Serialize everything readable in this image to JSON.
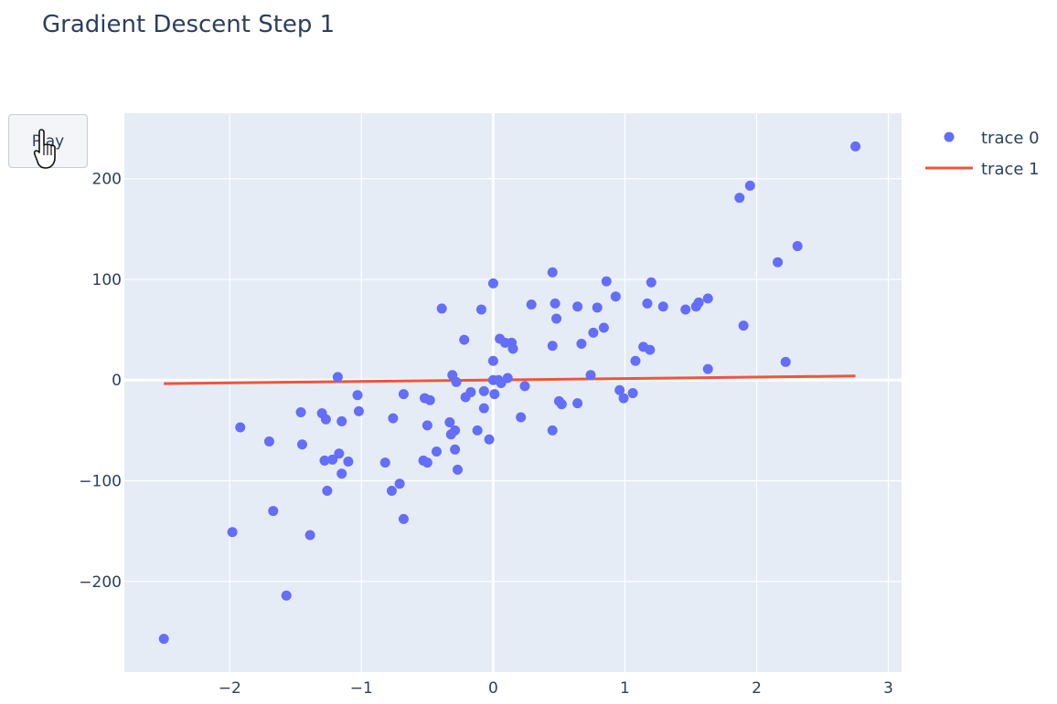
{
  "controls": {
    "play_label": "Play",
    "cursor_icon": "hand-pointer-icon"
  },
  "colors": {
    "plot_bg": "#e5ecf6",
    "grid": "#ffffff",
    "marker": "#636efa",
    "line": "#ef553b",
    "text": "#2a3f5f"
  },
  "chart_data": {
    "type": "scatter",
    "title": "Gradient Descent Step 1",
    "xlabel": "",
    "ylabel": "",
    "xlim": [
      -2.8,
      3.1
    ],
    "ylim": [
      -290,
      265
    ],
    "x_ticks": [
      -2,
      -1,
      0,
      1,
      2,
      3
    ],
    "x_tick_labels": [
      "−2",
      "−1",
      "0",
      "1",
      "2",
      "3"
    ],
    "y_ticks": [
      -200,
      -100,
      0,
      100,
      200
    ],
    "y_tick_labels": [
      "−200",
      "−100",
      "0",
      "100",
      "200"
    ],
    "grid": true,
    "legend_position": "top-right",
    "series": [
      {
        "name": "trace 0",
        "mode": "markers",
        "points": [
          [
            2.75,
            232
          ],
          [
            1.95,
            193
          ],
          [
            1.87,
            181
          ],
          [
            2.31,
            133
          ],
          [
            2.16,
            117
          ],
          [
            0.45,
            107
          ],
          [
            0.86,
            98
          ],
          [
            1.2,
            97
          ],
          [
            0.0,
            96
          ],
          [
            0.93,
            83
          ],
          [
            1.63,
            81
          ],
          [
            1.56,
            77
          ],
          [
            0.47,
            76
          ],
          [
            1.17,
            76
          ],
          [
            0.29,
            75
          ],
          [
            1.54,
            73
          ],
          [
            1.29,
            73
          ],
          [
            0.64,
            73
          ],
          [
            0.79,
            72
          ],
          [
            1.46,
            70
          ],
          [
            -0.39,
            71
          ],
          [
            -0.09,
            70
          ],
          [
            0.48,
            61
          ],
          [
            1.9,
            54
          ],
          [
            0.84,
            52
          ],
          [
            0.76,
            47
          ],
          [
            0.05,
            41
          ],
          [
            -0.22,
            40
          ],
          [
            0.09,
            37
          ],
          [
            0.14,
            37
          ],
          [
            0.67,
            36
          ],
          [
            0.45,
            34
          ],
          [
            1.14,
            33
          ],
          [
            0.15,
            31
          ],
          [
            1.19,
            30
          ],
          [
            1.08,
            19
          ],
          [
            0.0,
            19
          ],
          [
            2.22,
            18
          ],
          [
            1.63,
            11
          ],
          [
            -0.31,
            5
          ],
          [
            0.74,
            5
          ],
          [
            -1.18,
            3
          ],
          [
            0.11,
            2
          ],
          [
            0.0,
            0
          ],
          [
            0.04,
            0
          ],
          [
            -0.28,
            -2
          ],
          [
            0.06,
            -3
          ],
          [
            0.24,
            -6
          ],
          [
            0.96,
            -10
          ],
          [
            -0.07,
            -11
          ],
          [
            -0.17,
            -12
          ],
          [
            1.06,
            -13
          ],
          [
            0.01,
            -14
          ],
          [
            -0.68,
            -14
          ],
          [
            -1.03,
            -15
          ],
          [
            -0.21,
            -17
          ],
          [
            0.99,
            -18
          ],
          [
            -0.52,
            -18
          ],
          [
            -0.48,
            -20
          ],
          [
            0.5,
            -21
          ],
          [
            0.64,
            -23
          ],
          [
            0.52,
            -24
          ],
          [
            -0.07,
            -28
          ],
          [
            -1.02,
            -31
          ],
          [
            -1.46,
            -32
          ],
          [
            -1.3,
            -33
          ],
          [
            0.21,
            -37
          ],
          [
            -0.76,
            -38
          ],
          [
            -1.27,
            -39
          ],
          [
            -1.15,
            -41
          ],
          [
            -0.33,
            -42
          ],
          [
            -0.5,
            -45
          ],
          [
            -1.92,
            -47
          ],
          [
            0.45,
            -50
          ],
          [
            -0.29,
            -50
          ],
          [
            -0.12,
            -50
          ],
          [
            -0.32,
            -54
          ],
          [
            -0.03,
            -59
          ],
          [
            -1.7,
            -61
          ],
          [
            -1.45,
            -64
          ],
          [
            -0.29,
            -69
          ],
          [
            -0.43,
            -71
          ],
          [
            -1.17,
            -73
          ],
          [
            -1.22,
            -79
          ],
          [
            -0.53,
            -80
          ],
          [
            -1.28,
            -80
          ],
          [
            -1.1,
            -81
          ],
          [
            -0.5,
            -82
          ],
          [
            -0.82,
            -82
          ],
          [
            -0.27,
            -89
          ],
          [
            -1.15,
            -93
          ],
          [
            -0.71,
            -103
          ],
          [
            -0.77,
            -110
          ],
          [
            -1.26,
            -110
          ],
          [
            -1.67,
            -130
          ],
          [
            -0.68,
            -138
          ],
          [
            -1.98,
            -151
          ],
          [
            -1.39,
            -154
          ],
          [
            -1.57,
            -214
          ],
          [
            -2.5,
            -257
          ]
        ]
      },
      {
        "name": "trace 1",
        "mode": "lines",
        "points": [
          [
            -2.5,
            -3.5
          ],
          [
            2.75,
            4
          ]
        ]
      }
    ]
  }
}
